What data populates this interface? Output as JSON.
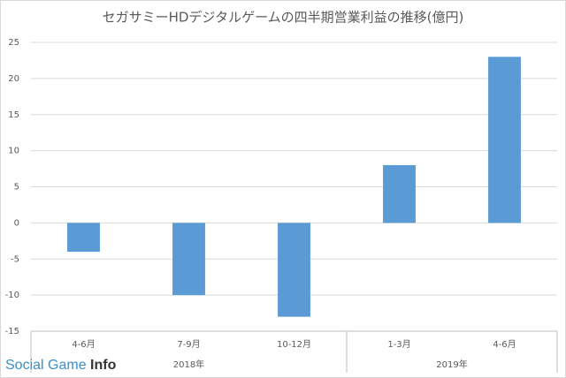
{
  "chart_data": {
    "type": "bar",
    "title": "セガサミーHDデジタルゲームの四半期営業利益の推移(億円)",
    "categories": [
      "4-6月",
      "7-9月",
      "10-12月",
      "1-3月",
      "4-6月"
    ],
    "category_groups": [
      {
        "label": "2018年",
        "span": 3
      },
      {
        "label": "2019年",
        "span": 2
      }
    ],
    "values": [
      -4,
      -10,
      -13,
      8,
      23
    ],
    "color": "#5b9bd5",
    "ylim": [
      -15,
      25
    ],
    "yticks": [
      -15,
      -10,
      -5,
      0,
      5,
      10,
      15,
      20,
      25
    ],
    "grid": true
  },
  "watermark": {
    "text": "Social Game",
    "emphasis": "Info"
  }
}
